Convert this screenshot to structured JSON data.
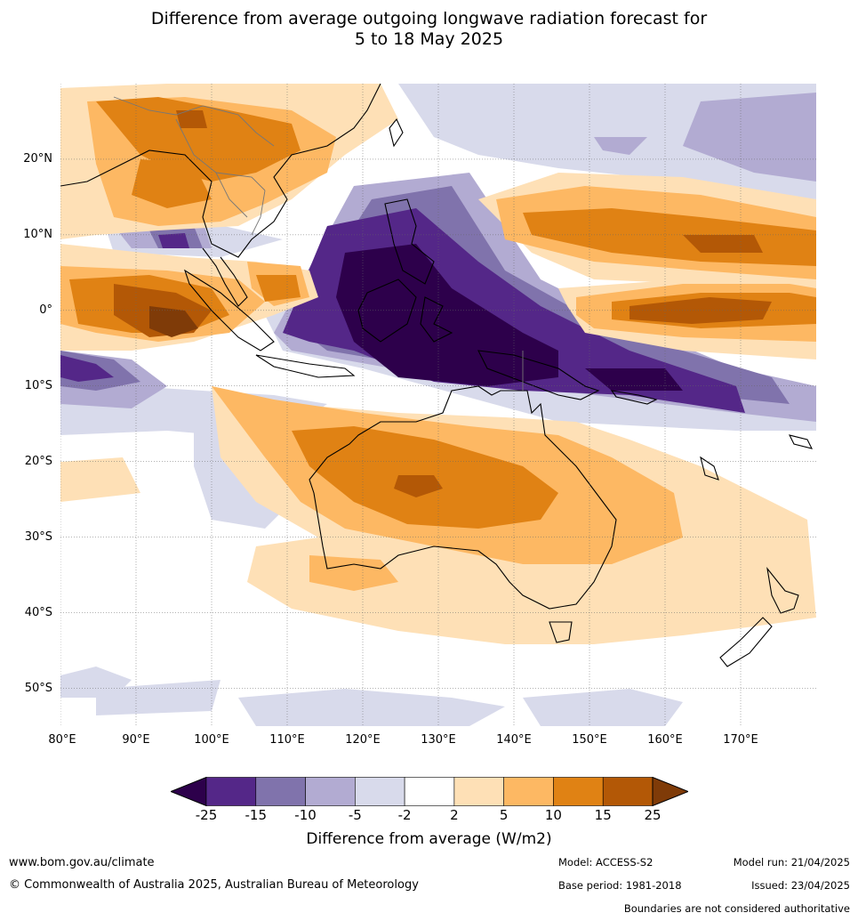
{
  "title": {
    "line1": "Difference from average outgoing longwave radiation forecast for",
    "line2": "5 to 18 May 2025"
  },
  "map": {
    "lat_labels": [
      "20°N",
      "10°N",
      "0°",
      "10°S",
      "20°S",
      "30°S",
      "40°S",
      "50°S"
    ],
    "lat_values": [
      20,
      10,
      0,
      -10,
      -20,
      -30,
      -40,
      -50
    ],
    "lon_labels": [
      "80°E",
      "90°E",
      "100°E",
      "110°E",
      "120°E",
      "130°E",
      "140°E",
      "150°E",
      "160°E",
      "170°E"
    ],
    "lon_values": [
      80,
      90,
      100,
      110,
      120,
      130,
      140,
      150,
      160,
      170
    ],
    "extent": {
      "lon_min": 80,
      "lon_max": 180,
      "lat_min": -55,
      "lat_max": 30
    }
  },
  "colorbar": {
    "ticks": [
      "-25",
      "-15",
      "-10",
      "-5",
      "-2",
      "2",
      "5",
      "10",
      "15",
      "25"
    ],
    "colors": [
      "#2d004b",
      "#542788",
      "#8073ac",
      "#b2abd2",
      "#d8daeb",
      "#ffffff",
      "#fee0b6",
      "#fdb863",
      "#e08214",
      "#b35806",
      "#7f3b08"
    ],
    "label": "Difference from average (W/m2)"
  },
  "footer": {
    "website": "www.bom.gov.au/climate",
    "copyright": "© Commonwealth of Australia 2025, Australian Bureau of Meteorology",
    "model": "Model: ACCESS-S2",
    "base_period": "Base period: 1981-2018",
    "model_run": "Model run: 21/04/2025",
    "issued": "Issued: 23/04/2025",
    "disclaimer": "Boundaries are not considered authoritative"
  }
}
